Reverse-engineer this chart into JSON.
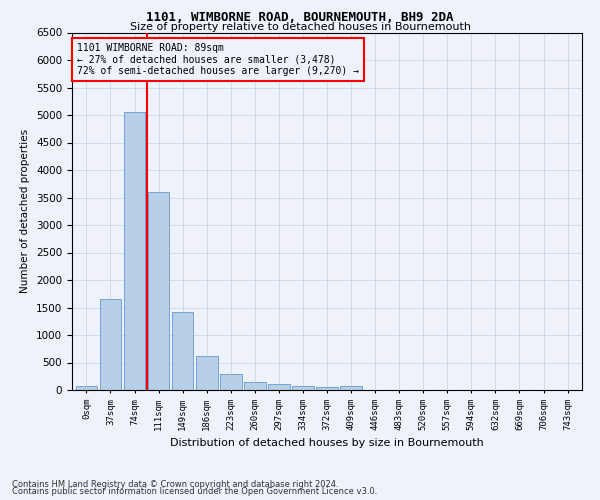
{
  "title": "1101, WIMBORNE ROAD, BOURNEMOUTH, BH9 2DA",
  "subtitle": "Size of property relative to detached houses in Bournemouth",
  "xlabel": "Distribution of detached houses by size in Bournemouth",
  "ylabel": "Number of detached properties",
  "bar_color": "#b8cfe8",
  "bar_edgecolor": "#6699cc",
  "grid_color": "#c8d0e0",
  "vline_color": "red",
  "vline_x": 2.5,
  "annotation_title": "1101 WIMBORNE ROAD: 89sqm",
  "annotation_line1": "← 27% of detached houses are smaller (3,478)",
  "annotation_line2": "72% of semi-detached houses are larger (9,270) →",
  "categories": [
    "0sqm",
    "37sqm",
    "74sqm",
    "111sqm",
    "149sqm",
    "186sqm",
    "223sqm",
    "260sqm",
    "297sqm",
    "334sqm",
    "372sqm",
    "409sqm",
    "446sqm",
    "483sqm",
    "520sqm",
    "557sqm",
    "594sqm",
    "632sqm",
    "669sqm",
    "706sqm",
    "743sqm"
  ],
  "bar_values": [
    80,
    1650,
    5060,
    3600,
    1420,
    620,
    300,
    150,
    110,
    80,
    50,
    80,
    0,
    0,
    0,
    0,
    0,
    0,
    0,
    0,
    0
  ],
  "ylim": [
    0,
    6500
  ],
  "yticks": [
    0,
    500,
    1000,
    1500,
    2000,
    2500,
    3000,
    3500,
    4000,
    4500,
    5000,
    5500,
    6000,
    6500
  ],
  "footnote1": "Contains HM Land Registry data © Crown copyright and database right 2024.",
  "footnote2": "Contains public sector information licensed under the Open Government Licence v3.0.",
  "bg_color": "#eef2fb"
}
